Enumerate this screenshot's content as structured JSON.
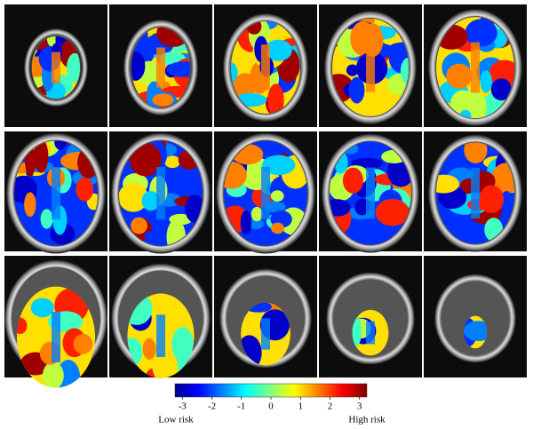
{
  "colorbar": {
    "lim": [
      -3.25,
      3.25
    ],
    "ticks": [
      -3,
      -2,
      -1,
      0,
      1,
      2,
      3
    ],
    "low_label": "Low risk",
    "high_label": "High risk"
  }
}
